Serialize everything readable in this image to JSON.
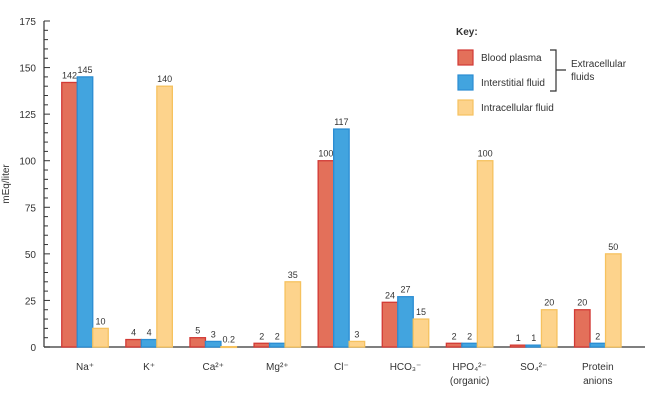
{
  "chart_data": {
    "type": "bar",
    "ylabel": "mEq/liter",
    "ylim": [
      0,
      175
    ],
    "yticks": [
      0,
      25,
      50,
      75,
      100,
      125,
      150,
      175
    ],
    "categories": [
      [
        "Na⁺"
      ],
      [
        "K⁺"
      ],
      [
        "Ca²⁺"
      ],
      [
        "Mg²⁺"
      ],
      [
        "Cl⁻"
      ],
      [
        "HCO₃⁻"
      ],
      [
        "HPO₄²⁻",
        "(organic)"
      ],
      [
        "SO₄²⁻"
      ],
      [
        "Protein",
        "anions"
      ]
    ],
    "series": [
      {
        "name": "Blood plasma",
        "values": [
          142,
          4,
          5,
          2,
          100,
          24,
          2,
          1,
          20
        ],
        "labels": [
          "142",
          "4",
          "5",
          "2",
          "100",
          "24",
          "2",
          "1",
          "20"
        ]
      },
      {
        "name": "Interstitial fluid",
        "values": [
          145,
          4,
          3,
          2,
          117,
          27,
          2,
          1,
          2
        ],
        "labels": [
          "145",
          "4",
          "3",
          "2",
          "117",
          "27",
          "2",
          "1",
          "2"
        ]
      },
      {
        "name": "Intracellular fluid",
        "values": [
          10,
          140,
          0.2,
          35,
          3,
          15,
          100,
          20,
          50
        ],
        "labels": [
          "10",
          "140",
          "0.2",
          "35",
          "3",
          "15",
          "100",
          "20",
          "50"
        ]
      }
    ],
    "legend": {
      "title": "Key:",
      "placement": "top-right",
      "bracket_label": [
        "Extracellular",
        "fluids"
      ]
    },
    "colors": {
      "fill": [
        "#e3705a",
        "#42a4df",
        "#fdd38c"
      ],
      "stroke": [
        "#d23a35",
        "#2b8dd3",
        "#f6c25f"
      ]
    },
    "grid": false
  }
}
